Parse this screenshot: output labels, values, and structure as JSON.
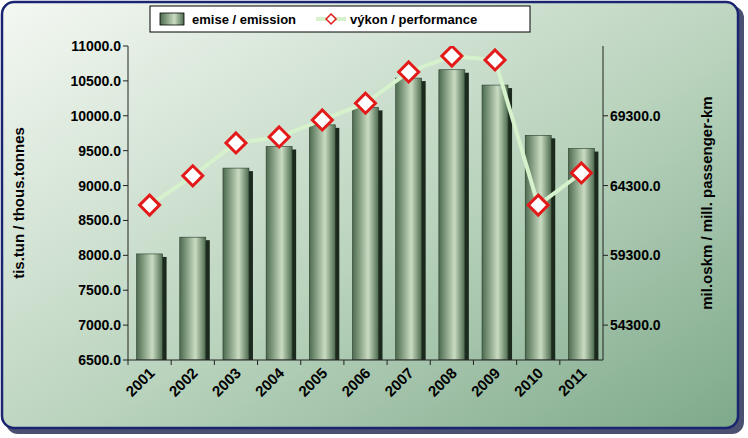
{
  "chart_data": {
    "type": "bar",
    "categories": [
      "2001",
      "2002",
      "2003",
      "2004",
      "2005",
      "2006",
      "2007",
      "2008",
      "2009",
      "2010",
      "2011"
    ],
    "series": [
      {
        "name": "emise / emission",
        "type": "bar",
        "color": "#4d6b4f",
        "values": [
          8020,
          8260,
          9250,
          9560,
          9870,
          10120,
          10540,
          10660,
          10440,
          9720,
          9530
        ]
      },
      {
        "name": "výkon / performance",
        "type": "line",
        "axis": "y2",
        "color": "#d6f2cc",
        "marker": "diamond",
        "values": [
          62900,
          65000,
          67350,
          67780,
          69000,
          70200,
          72440,
          73580,
          73300,
          62900,
          65200
        ]
      }
    ],
    "y_label": "tis.tun / thous.tonnes",
    "y2_label": "mil.oskm / mill. passenger-km",
    "ylim": [
      6500,
      11000
    ],
    "yticks": [
      {
        "value": 6500,
        "label": "6500.0"
      },
      {
        "value": 7000,
        "label": "7000.0"
      },
      {
        "value": 7500,
        "label": "7500.0"
      },
      {
        "value": 8000,
        "label": "8000.0"
      },
      {
        "value": 8500,
        "label": "8500.0"
      },
      {
        "value": 9000,
        "label": "9000.0"
      },
      {
        "value": 9500,
        "label": "9500.0"
      },
      {
        "value": 10000,
        "label": "10000.0"
      },
      {
        "value": 10500,
        "label": "10500.0"
      },
      {
        "value": 11000,
        "label": "11000.0"
      }
    ],
    "y2lim": [
      51800,
      74300
    ],
    "y2ticks": [
      {
        "value": 54300,
        "label": "54300.0"
      },
      {
        "value": 59300,
        "label": "59300.0"
      },
      {
        "value": 64300,
        "label": "64300.0"
      },
      {
        "value": 69300,
        "label": "69300.0"
      }
    ],
    "grid": false,
    "legend": "top"
  }
}
